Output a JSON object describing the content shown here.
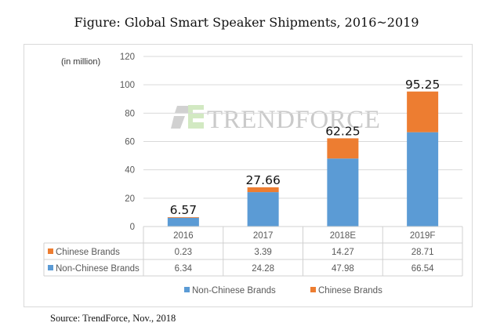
{
  "title": "Figure: Global Smart Speaker Shipments, 2016~2019",
  "source": "Source:  TrendForce,  Nov., 2018",
  "watermark": "TRENDFORCE",
  "colors": {
    "non_chinese": "#5b9bd5",
    "chinese": "#ed7d31",
    "grid": "#d9d9d9",
    "axis_text": "#595959"
  },
  "chart_data": {
    "type": "bar",
    "stacked": true,
    "title": "Figure: Global Smart Speaker Shipments, 2016~2019",
    "ylabel": "(in million)",
    "xlabel": "",
    "categories": [
      "2016",
      "2017",
      "2018E",
      "2019F"
    ],
    "ylim": [
      0,
      120
    ],
    "yticks": [
      "0",
      "20",
      "40",
      "60",
      "80",
      "100",
      "120"
    ],
    "grid": true,
    "series": [
      {
        "name": "Non-Chinese Brands",
        "values": [
          6.34,
          24.28,
          47.98,
          66.54
        ],
        "labels": [
          "6.34",
          "24.28",
          "47.98",
          "66.54"
        ]
      },
      {
        "name": "Chinese Brands",
        "values": [
          0.23,
          3.39,
          14.27,
          28.71
        ],
        "labels": [
          "0.23",
          "3.39",
          "14.27",
          "28.71"
        ]
      }
    ],
    "totals": [
      "6.57",
      "27.66",
      "62.25",
      "95.25"
    ],
    "table_rows": [
      {
        "name": "Chinese Brands",
        "values": [
          "0.23",
          "3.39",
          "14.27",
          "28.71"
        ]
      },
      {
        "name": "Non-Chinese Brands",
        "values": [
          "6.34",
          "24.28",
          "47.98",
          "66.54"
        ]
      }
    ],
    "legend": [
      "Non-Chinese Brands",
      "Chinese Brands"
    ],
    "legend_position": "bottom"
  }
}
